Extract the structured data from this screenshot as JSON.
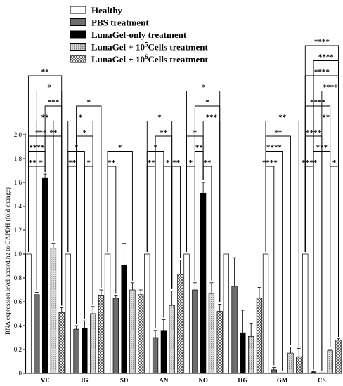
{
  "chart_data": {
    "type": "bar",
    "ylabel": "RNA expression level according to GAPDH (fold change)",
    "ylim": [
      0,
      2.0
    ],
    "yticks": [
      "0",
      "0.2",
      "0.4",
      "0.6",
      "0.8",
      "1.0",
      "1.2",
      "1.4",
      "1.6",
      "1.8",
      "2.0"
    ],
    "categories": [
      "VE",
      "IG",
      "SD",
      "AN",
      "NO",
      "HG",
      "GM",
      "CS"
    ],
    "legend_position": "top-center",
    "series": [
      {
        "name": "Healthy",
        "fill": "#ffffff",
        "pattern": "solid",
        "values": [
          1.0,
          1.0,
          1.0,
          1.0,
          1.0,
          1.0,
          1.0,
          1.0
        ],
        "errors": [
          0,
          0,
          0,
          0,
          0,
          0,
          0,
          0
        ]
      },
      {
        "name": "PBS treatment",
        "fill": "#6e6e6e",
        "pattern": "solid",
        "values": [
          0.66,
          0.37,
          0.63,
          0.3,
          0.7,
          0.73,
          0.03,
          0.01
        ],
        "errors": [
          0.02,
          0.03,
          0.02,
          0.06,
          0.06,
          0.24,
          0.02,
          0.005
        ]
      },
      {
        "name": "LunaGel-only treatment",
        "fill": "#000000",
        "pattern": "solid",
        "values": [
          1.64,
          0.38,
          0.91,
          0.36,
          1.51,
          0.34,
          0.0,
          0.0
        ],
        "errors": [
          0.03,
          0.06,
          0.18,
          0.09,
          0.09,
          0.19,
          0,
          0
        ]
      },
      {
        "name": "LunaGel + 10",
        "sup": "5",
        "suffix": "Cells treatment",
        "fill": "#bdbdbd",
        "pattern": "grid",
        "values": [
          1.05,
          0.5,
          0.7,
          0.57,
          0.67,
          0.31,
          0.17,
          0.19
        ],
        "errors": [
          0.04,
          0.06,
          0.06,
          0.12,
          0.09,
          0.11,
          0.05,
          0.01
        ]
      },
      {
        "name": "LunaGel + 10",
        "sup": "6",
        "suffix": "Cells treatment",
        "fill": "#a8a8a8",
        "pattern": "check",
        "values": [
          0.51,
          0.65,
          0.66,
          0.83,
          0.52,
          0.63,
          0.14,
          0.28
        ],
        "errors": [
          0.04,
          0.05,
          0.04,
          0.12,
          0.06,
          0.09,
          0.07,
          0.01
        ]
      }
    ],
    "significance": [
      {
        "category": 0,
        "from": 0,
        "to": 1,
        "level": 1,
        "label": "**"
      },
      {
        "category": 0,
        "from": 1,
        "to": 2,
        "level": 1,
        "label": "*"
      },
      {
        "category": 0,
        "from": 0,
        "to": 2,
        "level": 2,
        "label": "****"
      },
      {
        "category": 0,
        "from": 0,
        "to": 3,
        "level": 3,
        "label": "***"
      },
      {
        "category": 0,
        "from": 2,
        "to": 4,
        "level": 3,
        "label": "**"
      },
      {
        "category": 0,
        "from": 1,
        "to": 3,
        "level": 4,
        "label": "**"
      },
      {
        "category": 0,
        "from": 2,
        "to": 4,
        "level": 5,
        "label": "***"
      },
      {
        "category": 0,
        "from": 1,
        "to": 4,
        "level": 6,
        "label": "*"
      },
      {
        "category": 0,
        "from": 0,
        "to": 4,
        "level": 7,
        "label": "**"
      },
      {
        "category": 1,
        "from": 0,
        "to": 1,
        "level": 1,
        "label": "**"
      },
      {
        "category": 1,
        "from": 2,
        "to": 3,
        "level": 1,
        "label": "*"
      },
      {
        "category": 1,
        "from": 0,
        "to": 2,
        "level": 2,
        "label": "*"
      },
      {
        "category": 1,
        "from": 1,
        "to": 3,
        "level": 3,
        "label": "*"
      },
      {
        "category": 1,
        "from": 0,
        "to": 3,
        "level": 4,
        "label": "*"
      },
      {
        "category": 1,
        "from": 1,
        "to": 4,
        "level": 5,
        "label": "*"
      },
      {
        "category": 2,
        "from": 0,
        "to": 1,
        "level": 1,
        "label": "**"
      },
      {
        "category": 2,
        "from": 0,
        "to": 3,
        "level": 2,
        "label": "*"
      },
      {
        "category": 3,
        "from": 0,
        "to": 1,
        "level": 1,
        "label": "**"
      },
      {
        "category": 3,
        "from": 2,
        "to": 3,
        "level": 1,
        "label": "*"
      },
      {
        "category": 3,
        "from": 3,
        "to": 4,
        "level": 1,
        "label": "**"
      },
      {
        "category": 3,
        "from": 0,
        "to": 2,
        "level": 2,
        "label": "*"
      },
      {
        "category": 3,
        "from": 1,
        "to": 3,
        "level": 3,
        "label": "**"
      },
      {
        "category": 3,
        "from": 0,
        "to": 3,
        "level": 4,
        "label": "*"
      },
      {
        "category": 4,
        "from": 0,
        "to": 1,
        "level": 1,
        "label": "*"
      },
      {
        "category": 4,
        "from": 2,
        "to": 3,
        "level": 1,
        "label": "**"
      },
      {
        "category": 4,
        "from": 1,
        "to": 2,
        "level": 2,
        "label": "**"
      },
      {
        "category": 4,
        "from": 0,
        "to": 2,
        "level": 3,
        "label": "*"
      },
      {
        "category": 4,
        "from": 2,
        "to": 4,
        "level": 4,
        "label": "***"
      },
      {
        "category": 4,
        "from": 1,
        "to": 4,
        "level": 5,
        "label": "*"
      },
      {
        "category": 4,
        "from": 0,
        "to": 4,
        "level": 6,
        "label": "*"
      },
      {
        "category": 6,
        "from": 0,
        "to": 1,
        "level": 1,
        "label": "****"
      },
      {
        "category": 6,
        "from": 0,
        "to": 2,
        "level": 2,
        "label": "****"
      },
      {
        "category": 6,
        "from": 0,
        "to": 3,
        "level": 3,
        "label": "**"
      },
      {
        "category": 6,
        "from": 0,
        "to": 4,
        "level": 4,
        "label": "**"
      },
      {
        "category": 7,
        "from": 0,
        "to": 1,
        "level": 1,
        "label": "****"
      },
      {
        "category": 7,
        "from": 3,
        "to": 4,
        "level": 1,
        "label": "*"
      },
      {
        "category": 7,
        "from": 1,
        "to": 3,
        "level": 2,
        "label": "***"
      },
      {
        "category": 7,
        "from": 0,
        "to": 2,
        "level": 3,
        "label": "****"
      },
      {
        "category": 7,
        "from": 1,
        "to": 4,
        "level": 4,
        "label": "**"
      },
      {
        "category": 7,
        "from": 0,
        "to": 3,
        "level": 5,
        "label": "****"
      },
      {
        "category": 7,
        "from": 2,
        "to": 4,
        "level": 6,
        "label": "****"
      },
      {
        "category": 7,
        "from": 0,
        "to": 4,
        "level": 7,
        "label": "****"
      },
      {
        "category": 7,
        "from": 1,
        "to": 4,
        "level": 8,
        "label": "****"
      },
      {
        "category": 7,
        "from": 0,
        "to": 4,
        "level": 9,
        "label": "****"
      }
    ]
  }
}
